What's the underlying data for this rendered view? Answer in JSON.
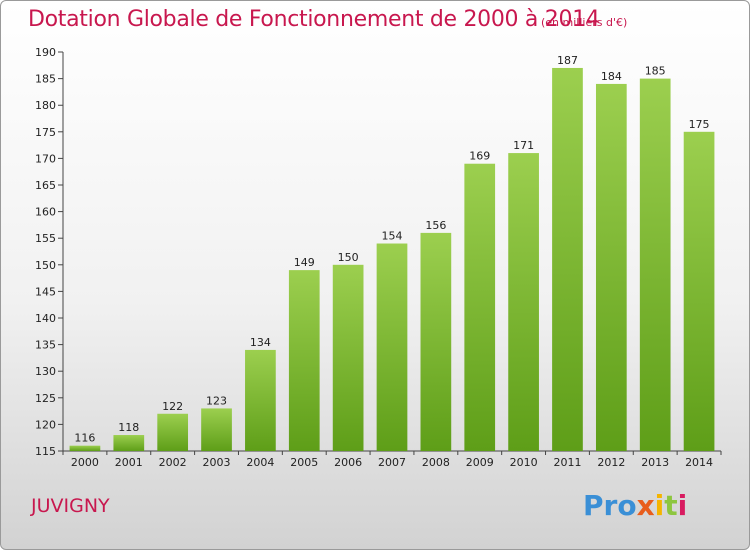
{
  "chart_data": {
    "type": "bar",
    "title": "Dotation Globale de Fonctionnement de 2000 à 2014",
    "subtitle": "(en milliers d'€)",
    "categories": [
      "2000",
      "2001",
      "2002",
      "2003",
      "2004",
      "2005",
      "2006",
      "2007",
      "2008",
      "2009",
      "2010",
      "2011",
      "2012",
      "2013",
      "2014"
    ],
    "values": [
      116,
      118,
      122,
      123,
      134,
      149,
      150,
      154,
      156,
      169,
      171,
      187,
      184,
      185,
      175
    ],
    "ylim": [
      115,
      190
    ],
    "yticks": [
      115,
      120,
      125,
      130,
      135,
      140,
      145,
      150,
      155,
      160,
      165,
      170,
      175,
      180,
      185,
      190
    ],
    "grid": false,
    "bar_color": "#7cbf2c"
  },
  "commune": "JUVIGNY",
  "logo": {
    "p1": "Pro",
    "p2": "x",
    "p3": "i",
    "p4": "t",
    "p5": "i"
  }
}
